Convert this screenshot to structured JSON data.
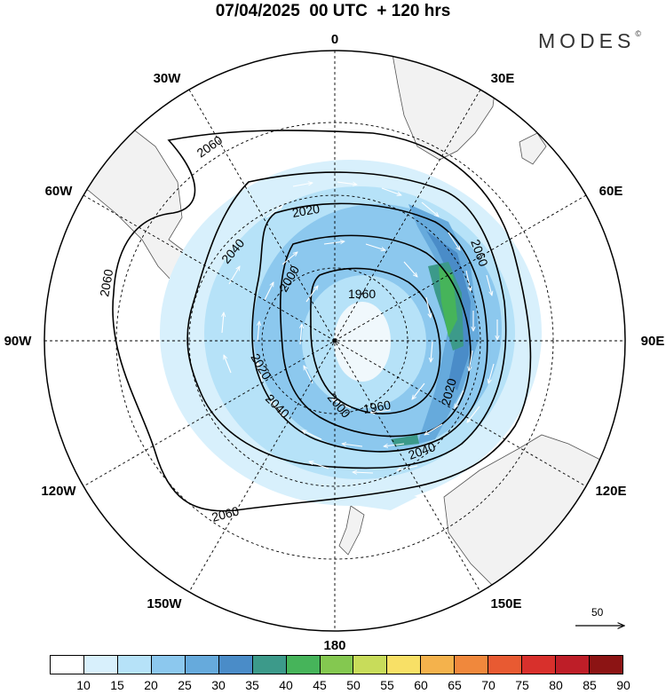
{
  "header": {
    "title": "07/04/2025  00 UTC  + 120 hrs",
    "brand": "MODES",
    "brand_mark": "©"
  },
  "map": {
    "projection": "south-polar-stereographic",
    "longitude_labels": [
      {
        "text": "0",
        "lon": 0
      },
      {
        "text": "30E",
        "lon": 30
      },
      {
        "text": "60E",
        "lon": 60
      },
      {
        "text": "90E",
        "lon": 90
      },
      {
        "text": "120E",
        "lon": 120
      },
      {
        "text": "150E",
        "lon": 150
      },
      {
        "text": "180",
        "lon": 180
      },
      {
        "text": "150W",
        "lon": -150
      },
      {
        "text": "120W",
        "lon": -120
      },
      {
        "text": "90W",
        "lon": -90
      },
      {
        "text": "60W",
        "lon": -60
      },
      {
        "text": "30W",
        "lon": -30
      }
    ],
    "contour_labels": [
      "2060",
      "2060",
      "2060",
      "2060",
      "2040",
      "2040",
      "2040",
      "2020",
      "2020",
      "2020",
      "2000",
      "2000",
      "1960",
      "1960"
    ],
    "land_color": "#f2f2f2",
    "reference_vector": {
      "label": "50"
    }
  },
  "colorbar": {
    "labels": [
      "10",
      "15",
      "20",
      "25",
      "30",
      "35",
      "40",
      "45",
      "50",
      "55",
      "60",
      "65",
      "70",
      "75",
      "80",
      "85",
      "90"
    ],
    "colors": [
      "#ffffff",
      "#d8f0fc",
      "#b6e2f8",
      "#8cc8ee",
      "#66aadc",
      "#4a8cc8",
      "#3c9a8a",
      "#46b45a",
      "#84c850",
      "#c8dc5a",
      "#f8e066",
      "#f4b24c",
      "#f0883c",
      "#e85a32",
      "#d8302c",
      "#be1e28",
      "#8c1414"
    ]
  }
}
